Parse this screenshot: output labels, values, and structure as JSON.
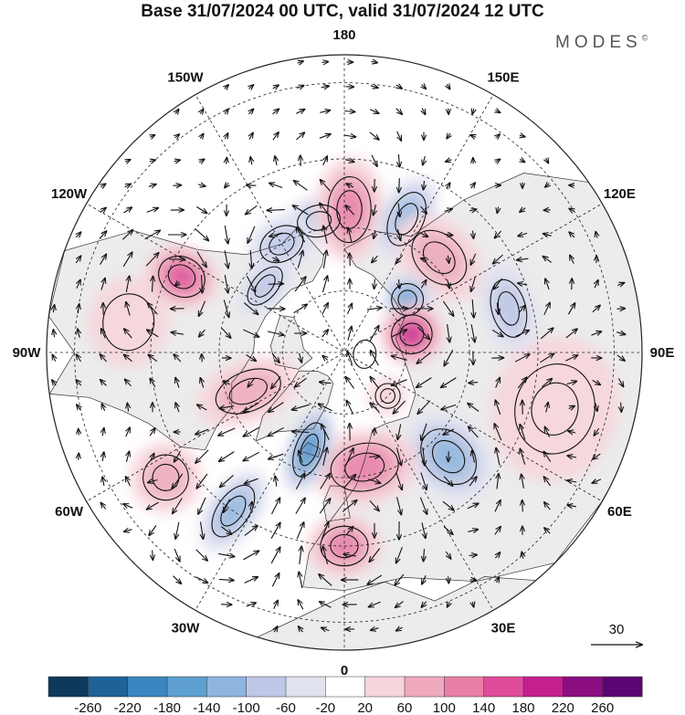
{
  "title": "Base 31/07/2024 00 UTC, valid 31/07/2024 12 UTC",
  "brand": "MODES",
  "brand_mark": "©",
  "map": {
    "projection": "north-polar-stereographic",
    "lon_labels": [
      "180",
      "150E",
      "120E",
      "90E",
      "60E",
      "30E",
      "0",
      "30W",
      "60W",
      "90W",
      "120W",
      "150W"
    ],
    "reference_vector": "30",
    "colors": {
      "land": "#ececec",
      "coast": "#333333",
      "graticule": "#222222",
      "contour": "#111111",
      "arrow": "#111111"
    }
  },
  "colorbar": {
    "ticks": [
      "-260",
      "-220",
      "-180",
      "-140",
      "-100",
      "-60",
      "-20",
      "20",
      "60",
      "100",
      "140",
      "180",
      "220",
      "260"
    ],
    "colors": [
      "#0d3a5c",
      "#1f6298",
      "#3a86c0",
      "#5c9fd0",
      "#8fb5de",
      "#bec8e6",
      "#e1e2f0",
      "#ffffff",
      "#f6d5dc",
      "#eeaabc",
      "#e77fa8",
      "#df4d9a",
      "#c41f8f",
      "#8a0e82",
      "#5b0572"
    ]
  },
  "anomalies": [
    {
      "lon": -169,
      "lat": 58,
      "value": -120,
      "rx": 38,
      "ry": 28
    },
    {
      "lon": -150,
      "lat": 60,
      "value": -110,
      "rx": 40,
      "ry": 30
    },
    {
      "lon": -130,
      "lat": 65,
      "value": -80,
      "rx": 40,
      "ry": 22
    },
    {
      "lon": 178,
      "lat": 56,
      "value": 150,
      "rx": 38,
      "ry": 58
    },
    {
      "lon": 155,
      "lat": 55,
      "value": -120,
      "rx": 30,
      "ry": 50
    },
    {
      "lon": 135,
      "lat": 58,
      "value": 80,
      "rx": 55,
      "ry": 40
    },
    {
      "lon": 130,
      "lat": 70,
      "value": -170,
      "rx": 28,
      "ry": 28
    },
    {
      "lon": 105,
      "lat": 50,
      "value": -110,
      "rx": 52,
      "ry": 30
    },
    {
      "lon": 105,
      "lat": 73,
      "value": 220,
      "rx": 34,
      "ry": 36
    },
    {
      "lon": 75,
      "lat": 40,
      "value": 60,
      "rx": 80,
      "ry": 70
    },
    {
      "lon": 45,
      "lat": 55,
      "value": -140,
      "rx": 42,
      "ry": 55
    },
    {
      "lon": 45,
      "lat": 75,
      "value": 60,
      "rx": 22,
      "ry": 22
    },
    {
      "lon": 10,
      "lat": 62,
      "value": 140,
      "rx": 60,
      "ry": 42
    },
    {
      "lon": 0,
      "lat": 45,
      "value": 120,
      "rx": 42,
      "ry": 35
    },
    {
      "lon": -20,
      "lat": 65,
      "value": -200,
      "rx": 24,
      "ry": 50
    },
    {
      "lon": -35,
      "lat": 45,
      "value": -150,
      "rx": 28,
      "ry": 52
    },
    {
      "lon": -55,
      "lat": 40,
      "value": 90,
      "rx": 40,
      "ry": 40
    },
    {
      "lon": -68,
      "lat": 65,
      "value": 100,
      "rx": 35,
      "ry": 60
    },
    {
      "lon": -115,
      "lat": 48,
      "value": 160,
      "rx": 35,
      "ry": 42
    },
    {
      "lon": -98,
      "lat": 40,
      "value": 40,
      "rx": 50,
      "ry": 45
    },
    {
      "lon": 85,
      "lat": 85,
      "value": 30,
      "rx": 25,
      "ry": 20
    }
  ]
}
